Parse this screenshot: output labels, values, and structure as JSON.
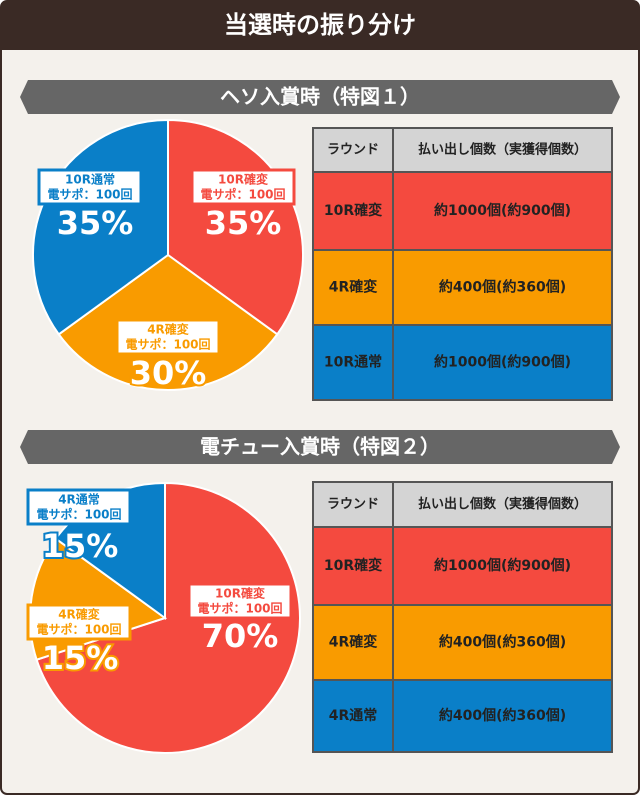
{
  "title": "当選時の振り分け",
  "chart_data": [
    {
      "type": "pie",
      "title": "ヘソ入賞時（特図１）",
      "categories": [
        "10R確変",
        "4R確変",
        "10R通常"
      ],
      "sublabels": [
        "電サポ：100回",
        "電サポ：100回",
        "電サポ：100回"
      ],
      "values": [
        35,
        30,
        35
      ],
      "value_labels": [
        "35%",
        "30%",
        "35%"
      ],
      "colors": [
        "#f44a3f",
        "#f99b00",
        "#0a7fc8"
      ]
    },
    {
      "type": "pie",
      "title": "電チュー入賞時（特図２）",
      "categories": [
        "10R確変",
        "4R確変",
        "4R通常"
      ],
      "sublabels": [
        "電サポ：100回",
        "電サポ：100回",
        "電サポ：100回"
      ],
      "values": [
        70,
        15,
        15
      ],
      "value_labels": [
        "70%",
        "15%",
        "15%"
      ],
      "colors": [
        "#f44a3f",
        "#f99b00",
        "#0a7fc8"
      ]
    }
  ],
  "tables": [
    {
      "columns": [
        "ラウンド",
        "払い出し個数（実獲得個数）"
      ],
      "rows": [
        [
          "10R確変",
          "約1000個(約900個)"
        ],
        [
          "4R確変",
          "約400個(約360個)"
        ],
        [
          "10R通常",
          "約1000個(約900個)"
        ]
      ]
    },
    {
      "columns": [
        "ラウンド",
        "払い出し個数（実獲得個数）"
      ],
      "rows": [
        [
          "10R確変",
          "約1000個(約900個)"
        ],
        [
          "4R確変",
          "約400個(約360個)"
        ],
        [
          "4R通常",
          "約400個(約360個)"
        ]
      ]
    }
  ]
}
